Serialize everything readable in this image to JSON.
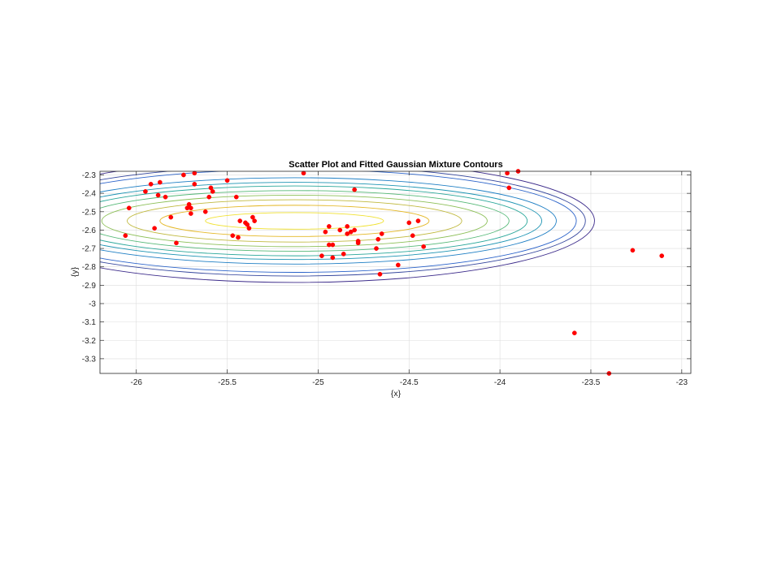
{
  "chart_data": {
    "type": "scatter",
    "title": "Scatter Plot and Fitted Gaussian Mixture Contours",
    "xlabel": "{x}",
    "ylabel": "{y}",
    "xlim": [
      -26.2,
      -22.95
    ],
    "ylim": [
      -3.38,
      -2.28
    ],
    "xticks": [
      -26,
      -25.5,
      -25,
      -24.5,
      -24,
      -23.5,
      -23
    ],
    "yticks": [
      -2.3,
      -2.4,
      -2.5,
      -2.6,
      -2.7,
      -2.8,
      -2.9,
      -3,
      -3.1,
      -3.2,
      -3.3
    ],
    "grid": true,
    "marker_color": "#ff0000",
    "points": [
      {
        "x": -26.06,
        "y": -2.63
      },
      {
        "x": -26.04,
        "y": -2.48
      },
      {
        "x": -25.95,
        "y": -2.39
      },
      {
        "x": -25.92,
        "y": -2.35
      },
      {
        "x": -25.9,
        "y": -2.59
      },
      {
        "x": -25.88,
        "y": -2.41
      },
      {
        "x": -25.87,
        "y": -2.34
      },
      {
        "x": -25.84,
        "y": -2.42
      },
      {
        "x": -25.81,
        "y": -2.53
      },
      {
        "x": -25.78,
        "y": -2.67
      },
      {
        "x": -25.74,
        "y": -2.3
      },
      {
        "x": -25.72,
        "y": -2.48
      },
      {
        "x": -25.71,
        "y": -2.46
      },
      {
        "x": -25.7,
        "y": -2.48
      },
      {
        "x": -25.7,
        "y": -2.51
      },
      {
        "x": -25.68,
        "y": -2.29
      },
      {
        "x": -25.68,
        "y": -2.35
      },
      {
        "x": -25.62,
        "y": -2.5
      },
      {
        "x": -25.6,
        "y": -2.42
      },
      {
        "x": -25.59,
        "y": -2.37
      },
      {
        "x": -25.58,
        "y": -2.39
      },
      {
        "x": -25.5,
        "y": -2.33
      },
      {
        "x": -25.47,
        "y": -2.63
      },
      {
        "x": -25.45,
        "y": -2.42
      },
      {
        "x": -25.44,
        "y": -2.64
      },
      {
        "x": -25.43,
        "y": -2.55
      },
      {
        "x": -25.4,
        "y": -2.56
      },
      {
        "x": -25.39,
        "y": -2.57
      },
      {
        "x": -25.38,
        "y": -2.59
      },
      {
        "x": -25.36,
        "y": -2.53
      },
      {
        "x": -25.35,
        "y": -2.55
      },
      {
        "x": -25.08,
        "y": -2.29
      },
      {
        "x": -24.98,
        "y": -2.74
      },
      {
        "x": -24.96,
        "y": -2.61
      },
      {
        "x": -24.94,
        "y": -2.58
      },
      {
        "x": -24.94,
        "y": -2.68
      },
      {
        "x": -24.92,
        "y": -2.68
      },
      {
        "x": -24.92,
        "y": -2.75
      },
      {
        "x": -24.88,
        "y": -2.6
      },
      {
        "x": -24.86,
        "y": -2.73
      },
      {
        "x": -24.84,
        "y": -2.58
      },
      {
        "x": -24.84,
        "y": -2.62
      },
      {
        "x": -24.82,
        "y": -2.61
      },
      {
        "x": -24.8,
        "y": -2.38
      },
      {
        "x": -24.8,
        "y": -2.6
      },
      {
        "x": -24.78,
        "y": -2.66
      },
      {
        "x": -24.78,
        "y": -2.67
      },
      {
        "x": -24.68,
        "y": -2.7
      },
      {
        "x": -24.67,
        "y": -2.65
      },
      {
        "x": -24.65,
        "y": -2.62
      },
      {
        "x": -24.66,
        "y": -2.84
      },
      {
        "x": -24.56,
        "y": -2.79
      },
      {
        "x": -24.5,
        "y": -2.56
      },
      {
        "x": -24.48,
        "y": -2.63
      },
      {
        "x": -24.45,
        "y": -2.55
      },
      {
        "x": -24.42,
        "y": -2.69
      },
      {
        "x": -23.96,
        "y": -2.29
      },
      {
        "x": -23.95,
        "y": -2.37
      },
      {
        "x": -23.9,
        "y": -2.28
      },
      {
        "x": -23.59,
        "y": -3.16
      },
      {
        "x": -23.4,
        "y": -3.38
      },
      {
        "x": -23.27,
        "y": -2.71
      },
      {
        "x": -23.11,
        "y": -2.74
      }
    ],
    "contour_center": {
      "x": -25.13,
      "y": -2.55
    },
    "contour_levels": [
      {
        "rx": 0.49,
        "ry": 0.045,
        "color": "#f0e130"
      },
      {
        "rx": 0.74,
        "ry": 0.085,
        "color": "#e4b827"
      },
      {
        "rx": 0.92,
        "ry": 0.115,
        "color": "#c0b93f"
      },
      {
        "rx": 1.06,
        "ry": 0.14,
        "color": "#8cbf57"
      },
      {
        "rx": 1.18,
        "ry": 0.165,
        "color": "#55b877"
      },
      {
        "rx": 1.28,
        "ry": 0.19,
        "color": "#2aa79a"
      },
      {
        "rx": 1.36,
        "ry": 0.21,
        "color": "#1d94b3"
      },
      {
        "rx": 1.44,
        "ry": 0.235,
        "color": "#1f7fc4"
      },
      {
        "rx": 1.55,
        "ry": 0.28,
        "color": "#2a62c9"
      },
      {
        "rx": 1.6,
        "ry": 0.3,
        "color": "#34469d"
      },
      {
        "rx": 1.65,
        "ry": 0.335,
        "color": "#3b2a8a"
      }
    ]
  }
}
